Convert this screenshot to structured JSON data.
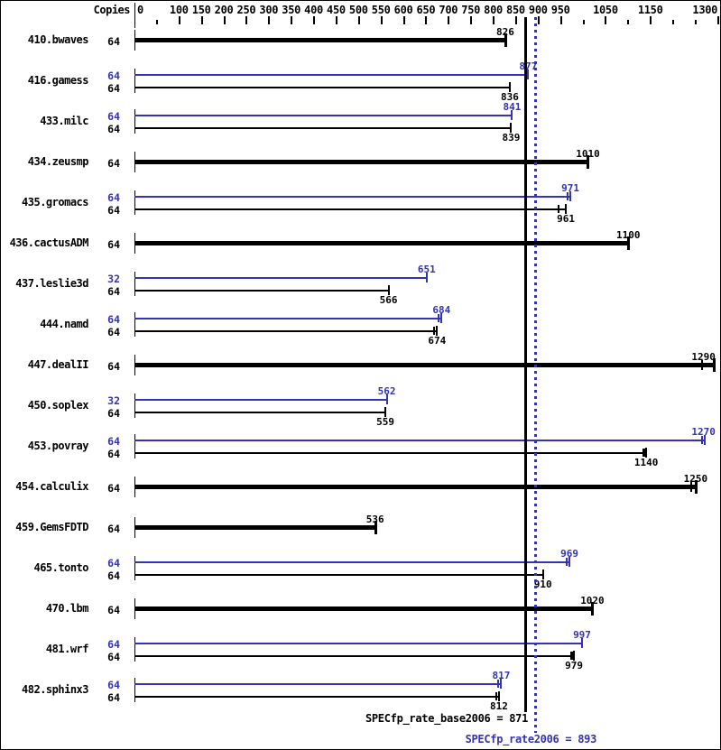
{
  "header": {
    "copies_label": "Copies"
  },
  "means": {
    "base": {
      "value": 871,
      "label": "SPECfp_rate_base2006 = 871"
    },
    "peak": {
      "value": 893,
      "label": "SPECfp_rate2006 = 893"
    }
  },
  "chart_data": {
    "type": "bar",
    "orientation": "horizontal",
    "x_axis": {
      "min": 0,
      "max": 1300,
      "labeled_ticks": [
        0,
        100,
        150,
        200,
        250,
        300,
        350,
        400,
        450,
        500,
        550,
        600,
        650,
        700,
        750,
        800,
        850,
        900,
        950,
        1050,
        1150,
        1300
      ],
      "minor_ticks": [
        50,
        1000,
        1100,
        1200,
        1250
      ]
    },
    "colors": {
      "base": "#000000",
      "peak": "#3333b4"
    },
    "mean_lines": {
      "base": 871,
      "peak": 893
    },
    "benchmarks": [
      {
        "name": "410.bwaves",
        "bars": [
          {
            "kind": "base",
            "copies": "64",
            "value": 826,
            "marks": []
          }
        ]
      },
      {
        "name": "416.gamess",
        "bars": [
          {
            "kind": "peak",
            "copies": "64",
            "value": 877,
            "marks": []
          },
          {
            "kind": "base",
            "copies": "64",
            "value": 836,
            "marks": []
          }
        ]
      },
      {
        "name": "433.milc",
        "bars": [
          {
            "kind": "peak",
            "copies": "64",
            "value": 841,
            "marks": []
          },
          {
            "kind": "base",
            "copies": "64",
            "value": 839,
            "marks": []
          }
        ]
      },
      {
        "name": "434.zeusmp",
        "bars": [
          {
            "kind": "base",
            "copies": "64",
            "value": 1010,
            "marks": []
          }
        ]
      },
      {
        "name": "435.gromacs",
        "bars": [
          {
            "kind": "peak",
            "copies": "64",
            "value": 971,
            "marks": [
              965
            ]
          },
          {
            "kind": "base",
            "copies": "64",
            "value": 961,
            "marks": [
              945
            ]
          }
        ]
      },
      {
        "name": "436.cactusADM",
        "bars": [
          {
            "kind": "base",
            "copies": "64",
            "value": 1100,
            "marks": []
          }
        ]
      },
      {
        "name": "437.leslie3d",
        "bars": [
          {
            "kind": "peak",
            "copies": "32",
            "value": 651,
            "marks": []
          },
          {
            "kind": "base",
            "copies": "64",
            "value": 566,
            "marks": []
          }
        ]
      },
      {
        "name": "444.namd",
        "bars": [
          {
            "kind": "peak",
            "copies": "64",
            "value": 684,
            "marks": [
              677
            ]
          },
          {
            "kind": "base",
            "copies": "64",
            "value": 674,
            "marks": [
              668
            ]
          }
        ]
      },
      {
        "name": "447.dealII",
        "bars": [
          {
            "kind": "base",
            "copies": "64",
            "value": 1290,
            "marks": [
              1264
            ]
          }
        ]
      },
      {
        "name": "450.soplex",
        "bars": [
          {
            "kind": "peak",
            "copies": "32",
            "value": 562,
            "marks": []
          },
          {
            "kind": "base",
            "copies": "64",
            "value": 559,
            "marks": []
          }
        ]
      },
      {
        "name": "453.povray",
        "bars": [
          {
            "kind": "peak",
            "copies": "64",
            "value": 1270,
            "marks": [
              1264
            ]
          },
          {
            "kind": "base",
            "copies": "64",
            "value": 1140,
            "marks": [
              1133,
              1137
            ]
          }
        ]
      },
      {
        "name": "454.calculix",
        "bars": [
          {
            "kind": "base",
            "copies": "64",
            "value": 1250,
            "marks": [
              1241
            ]
          }
        ]
      },
      {
        "name": "459.GemsFDTD",
        "bars": [
          {
            "kind": "base",
            "copies": "64",
            "value": 536,
            "marks": []
          }
        ]
      },
      {
        "name": "465.tonto",
        "bars": [
          {
            "kind": "peak",
            "copies": "64",
            "value": 969,
            "marks": [
              963
            ]
          },
          {
            "kind": "base",
            "copies": "64",
            "value": 910,
            "marks": []
          }
        ]
      },
      {
        "name": "470.lbm",
        "bars": [
          {
            "kind": "base",
            "copies": "64",
            "value": 1020,
            "marks": []
          }
        ]
      },
      {
        "name": "481.wrf",
        "bars": [
          {
            "kind": "peak",
            "copies": "64",
            "value": 997,
            "marks": []
          },
          {
            "kind": "base",
            "copies": "64",
            "value": 979,
            "marks": [
              972,
              976
            ]
          }
        ]
      },
      {
        "name": "482.sphinx3",
        "bars": [
          {
            "kind": "peak",
            "copies": "64",
            "value": 817,
            "marks": [
              811
            ]
          },
          {
            "kind": "base",
            "copies": "64",
            "value": 812,
            "marks": [
              806
            ]
          }
        ]
      }
    ]
  }
}
